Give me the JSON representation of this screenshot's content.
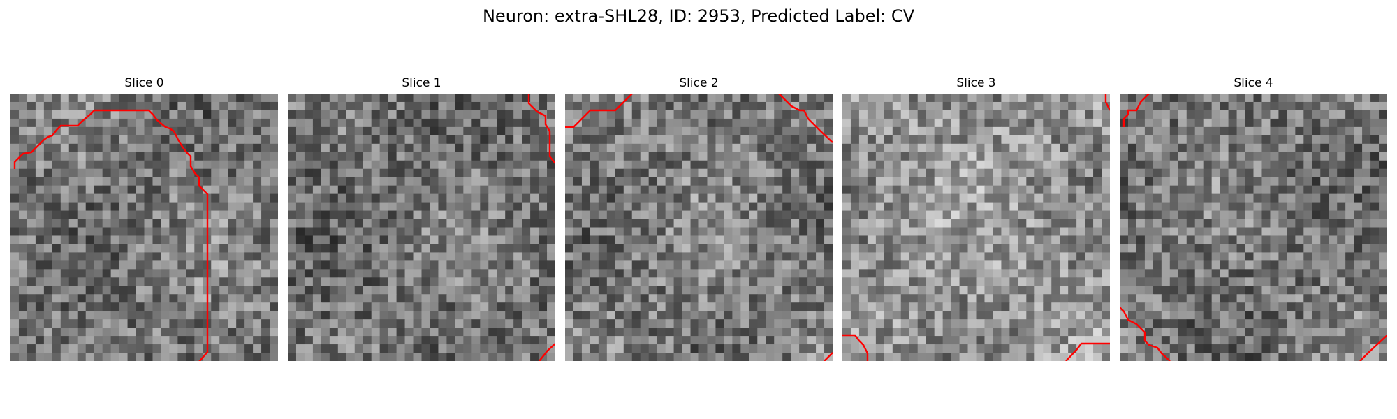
{
  "figure": {
    "title": "Neuron: extra-SHL28, ID: 2953, Predicted Label: CV"
  },
  "colors": {
    "contour": "#ff0000",
    "background": "#ffffff"
  },
  "panels": [
    {
      "title": "Slice 0",
      "seed": 101,
      "bias": -8
    },
    {
      "title": "Slice 1",
      "seed": 202,
      "bias": -14
    },
    {
      "title": "Slice 2",
      "seed": 303,
      "bias": -6
    },
    {
      "title": "Slice 3",
      "seed": 404,
      "bias": 18
    },
    {
      "title": "Slice 4",
      "seed": 505,
      "bias": -10
    }
  ]
}
